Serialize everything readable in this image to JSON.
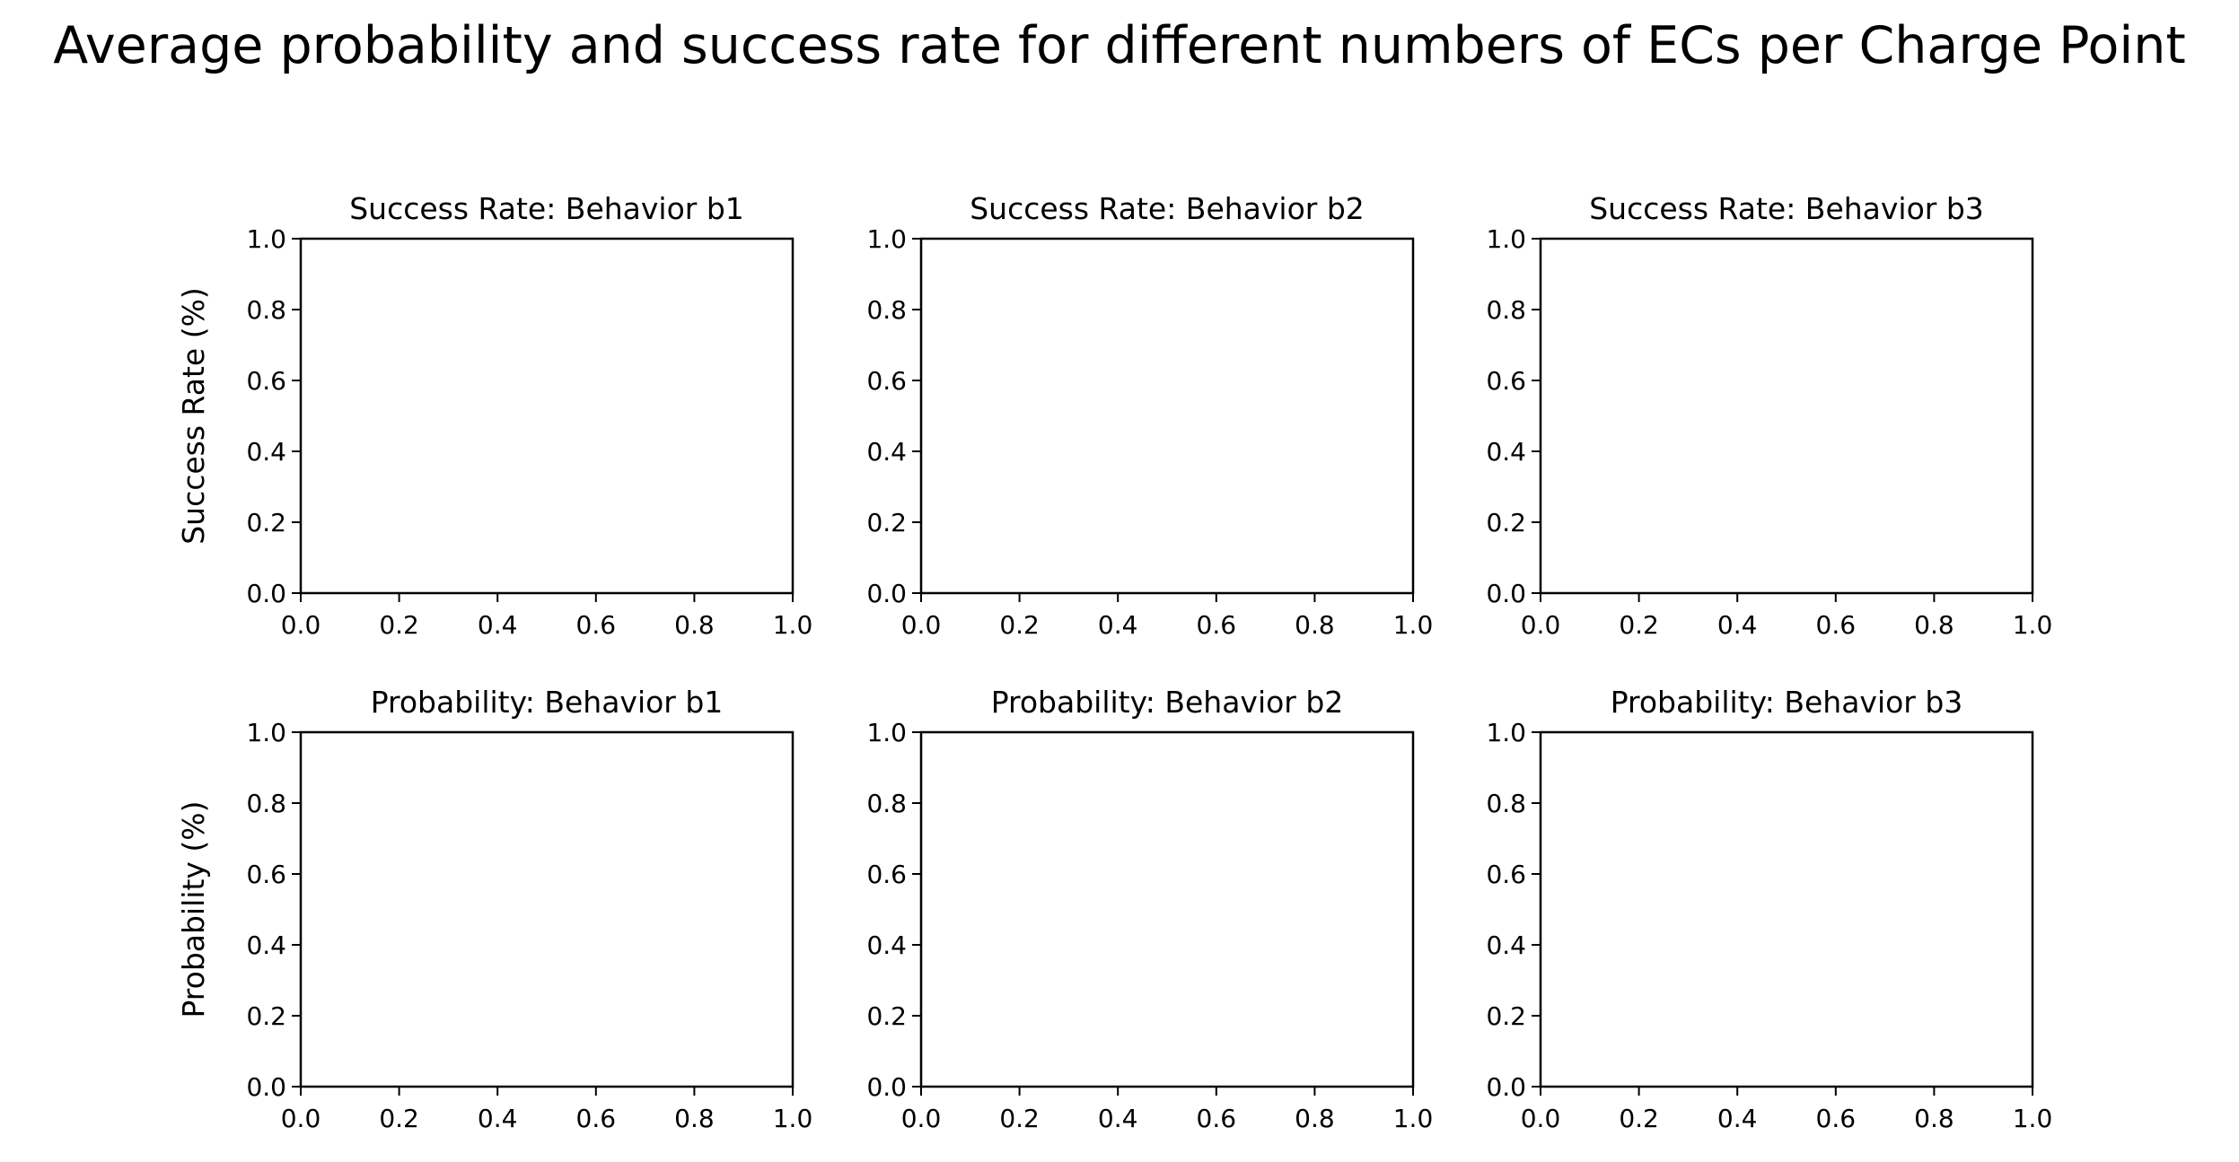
{
  "figure": {
    "title": "Average probability and success rate for different numbers of ECs per Charge Point"
  },
  "chart_data": [
    {
      "type": "line",
      "title": "Success Rate: Behavior b1",
      "xlabel": "",
      "ylabel": "Success Rate (%)",
      "xlim": [
        0,
        1
      ],
      "ylim": [
        0,
        1
      ],
      "xticks": [
        "0.0",
        "0.2",
        "0.4",
        "0.6",
        "0.8",
        "1.0"
      ],
      "yticks": [
        "0.0",
        "0.2",
        "0.4",
        "0.6",
        "0.8",
        "1.0"
      ],
      "series": [],
      "grid": false
    },
    {
      "type": "line",
      "title": "Success Rate: Behavior b2",
      "xlabel": "",
      "ylabel": "",
      "xlim": [
        0,
        1
      ],
      "ylim": [
        0,
        1
      ],
      "xticks": [
        "0.0",
        "0.2",
        "0.4",
        "0.6",
        "0.8",
        "1.0"
      ],
      "yticks": [
        "0.0",
        "0.2",
        "0.4",
        "0.6",
        "0.8",
        "1.0"
      ],
      "series": [],
      "grid": false
    },
    {
      "type": "line",
      "title": "Success Rate: Behavior b3",
      "xlabel": "",
      "ylabel": "",
      "xlim": [
        0,
        1
      ],
      "ylim": [
        0,
        1
      ],
      "xticks": [
        "0.0",
        "0.2",
        "0.4",
        "0.6",
        "0.8",
        "1.0"
      ],
      "yticks": [
        "0.0",
        "0.2",
        "0.4",
        "0.6",
        "0.8",
        "1.0"
      ],
      "series": [],
      "grid": false
    },
    {
      "type": "line",
      "title": "Probability: Behavior b1",
      "xlabel": "",
      "ylabel": "Probability (%)",
      "xlim": [
        0,
        1
      ],
      "ylim": [
        0,
        1
      ],
      "xticks": [
        "0.0",
        "0.2",
        "0.4",
        "0.6",
        "0.8",
        "1.0"
      ],
      "yticks": [
        "0.0",
        "0.2",
        "0.4",
        "0.6",
        "0.8",
        "1.0"
      ],
      "series": [],
      "grid": false
    },
    {
      "type": "line",
      "title": "Probability: Behavior b2",
      "xlabel": "",
      "ylabel": "",
      "xlim": [
        0,
        1
      ],
      "ylim": [
        0,
        1
      ],
      "xticks": [
        "0.0",
        "0.2",
        "0.4",
        "0.6",
        "0.8",
        "1.0"
      ],
      "yticks": [
        "0.0",
        "0.2",
        "0.4",
        "0.6",
        "0.8",
        "1.0"
      ],
      "series": [],
      "grid": false
    },
    {
      "type": "line",
      "title": "Probability: Behavior b3",
      "xlabel": "",
      "ylabel": "",
      "xlim": [
        0,
        1
      ],
      "ylim": [
        0,
        1
      ],
      "xticks": [
        "0.0",
        "0.2",
        "0.4",
        "0.6",
        "0.8",
        "1.0"
      ],
      "yticks": [
        "0.0",
        "0.2",
        "0.4",
        "0.6",
        "0.8",
        "1.0"
      ],
      "series": [],
      "grid": false
    }
  ]
}
